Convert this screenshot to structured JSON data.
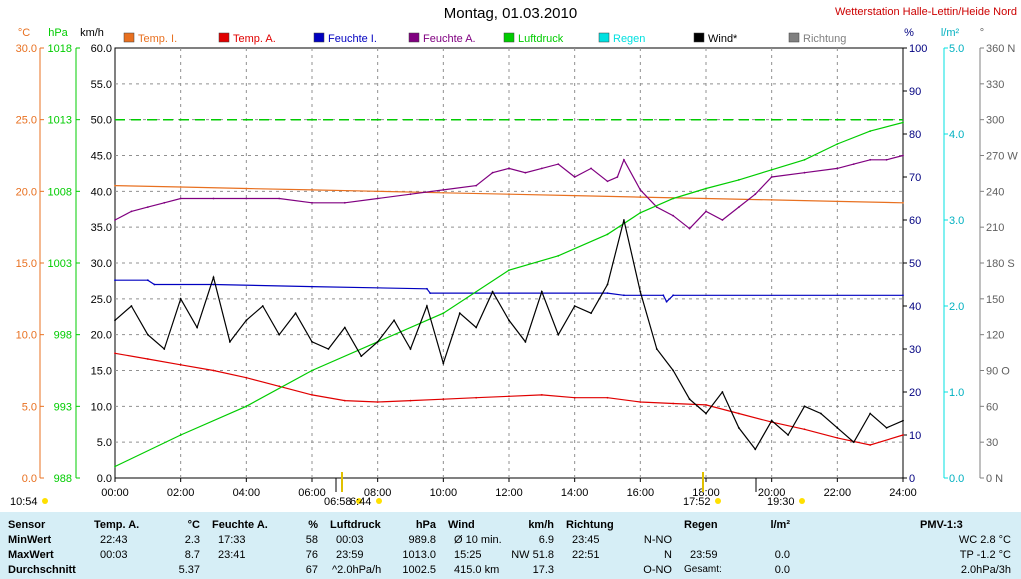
{
  "title": "Montag, 01.03.2010",
  "station": "Wetterstation Halle-Lettin/Heide Nord",
  "colors": {
    "temp_i": "#e87020",
    "temp_a": "#e00000",
    "feuchte_i": "#0000c0",
    "feuchte_a": "#800080",
    "luftdruck": "#00cc00",
    "regen": "#00e0e0",
    "wind": "#000000",
    "richtung": "#808080",
    "table_bg": "#d6eef6"
  },
  "legend": [
    {
      "key": "temp_i",
      "label": "Temp. I."
    },
    {
      "key": "temp_a",
      "label": "Temp. A."
    },
    {
      "key": "feuchte_i",
      "label": "Feuchte I."
    },
    {
      "key": "feuchte_a",
      "label": "Feuchte A."
    },
    {
      "key": "luftdruck",
      "label": "Luftdruck"
    },
    {
      "key": "regen",
      "label": "Regen"
    },
    {
      "key": "wind",
      "label": "Wind*"
    },
    {
      "key": "richtung",
      "label": "Richtung"
    }
  ],
  "chart_data": {
    "type": "line",
    "title": "Montag, 01.03.2010",
    "x_unit": "hours",
    "xlim": [
      0,
      24
    ],
    "x_tick_labels": [
      "00:00",
      "02:00",
      "04:00",
      "06:00",
      "08:00",
      "10:00",
      "12:00",
      "14:00",
      "16:00",
      "18:00",
      "20:00",
      "22:00",
      "24:00"
    ],
    "axes": {
      "temp": {
        "unit": "°C",
        "range": [
          0,
          30
        ],
        "ticks": [
          "0.0",
          "5.0",
          "10.0",
          "15.0",
          "20.0",
          "25.0",
          "30.0"
        ]
      },
      "pressure": {
        "unit": "hPa",
        "range": [
          988,
          1018
        ],
        "ticks": [
          "988",
          "993",
          "998",
          "1003",
          "1008",
          "1013",
          "1018"
        ]
      },
      "wind": {
        "unit": "km/h",
        "range": [
          0,
          60
        ],
        "ticks": [
          "0.0",
          "5.0",
          "10.0",
          "15.0",
          "20.0",
          "25.0",
          "30.0",
          "35.0",
          "40.0",
          "45.0",
          "50.0",
          "55.0",
          "60.0"
        ]
      },
      "humidity": {
        "unit": "%",
        "range": [
          0,
          100
        ],
        "ticks": [
          "0",
          "10",
          "20",
          "30",
          "40",
          "50",
          "60",
          "70",
          "80",
          "90",
          "100"
        ]
      },
      "rain": {
        "unit": "l/m²",
        "range": [
          0,
          5
        ],
        "ticks": [
          "0.0",
          "1.0",
          "2.0",
          "3.0",
          "4.0",
          "5.0"
        ]
      },
      "direction": {
        "unit": "°",
        "range": [
          0,
          360
        ],
        "ticks": [
          "0  N",
          "30",
          "60",
          "90  O",
          "120",
          "150",
          "180 S",
          "210",
          "240",
          "270 W",
          "300",
          "330",
          "360 N"
        ]
      }
    },
    "grid": true,
    "series": [
      {
        "name": "Temp. I.",
        "axis": "temp",
        "x": [
          0,
          2,
          4,
          6,
          8,
          10,
          12,
          14,
          16,
          18,
          20,
          22,
          24
        ],
        "values": [
          20.4,
          20.3,
          20.2,
          20.1,
          20.0,
          19.9,
          19.8,
          19.7,
          19.6,
          19.5,
          19.4,
          19.3,
          19.2
        ]
      },
      {
        "name": "Temp. A.",
        "axis": "temp",
        "x": [
          0,
          1,
          2,
          3,
          4,
          5,
          6,
          7,
          8,
          9,
          10,
          11,
          12,
          13,
          14,
          15,
          16,
          17,
          18,
          19,
          20,
          21,
          22,
          23,
          24
        ],
        "values": [
          8.7,
          8.3,
          7.9,
          7.5,
          7.0,
          6.4,
          5.8,
          5.4,
          5.3,
          5.4,
          5.5,
          5.6,
          5.7,
          5.8,
          5.6,
          5.6,
          5.3,
          5.2,
          5.1,
          4.5,
          3.9,
          3.4,
          2.8,
          2.3,
          3.0
        ]
      },
      {
        "name": "Feuchte I.",
        "axis": "humidity",
        "x": [
          0,
          1,
          1.2,
          3,
          6,
          9.5,
          9.6,
          12,
          15,
          15.5,
          16.7,
          16.8,
          17,
          24
        ],
        "values": [
          46,
          46,
          45,
          45,
          44.5,
          44,
          43,
          43,
          43,
          42.5,
          42.5,
          41,
          42.5,
          42.5
        ]
      },
      {
        "name": "Feuchte A.",
        "axis": "humidity",
        "x": [
          0,
          0.5,
          1,
          1.5,
          2,
          3,
          4,
          5,
          6,
          7,
          8,
          9,
          10,
          11,
          11.5,
          12,
          12.5,
          13,
          13.5,
          14,
          14.5,
          15,
          15.3,
          15.5,
          16,
          16.5,
          17,
          17.5,
          18,
          18.5,
          19,
          19.5,
          20,
          21,
          22,
          22.5,
          23,
          23.5,
          24
        ],
        "values": [
          60,
          62,
          63,
          64,
          65,
          65,
          65,
          65,
          64,
          64,
          65,
          66,
          67,
          68,
          71,
          72,
          71,
          72,
          73,
          70,
          72,
          69,
          70,
          74,
          67,
          63,
          61,
          58,
          62,
          60,
          63,
          66,
          70,
          71,
          72,
          73,
          74,
          74,
          75
        ]
      },
      {
        "name": "Luftdruck",
        "axis": "pressure",
        "x": [
          0,
          2,
          4,
          6,
          8,
          10,
          12,
          13.5,
          15,
          16,
          17,
          18,
          19,
          20,
          21,
          22,
          23,
          24
        ],
        "values": [
          988.8,
          991.0,
          993.0,
          995.5,
          997.5,
          999.5,
          1002.5,
          1003.5,
          1005.0,
          1006.5,
          1007.5,
          1008.2,
          1008.8,
          1009.5,
          1010.2,
          1011.3,
          1012.2,
          1012.8
        ]
      },
      {
        "name": "Wind*",
        "axis": "wind",
        "x": [
          0,
          0.5,
          1,
          1.5,
          2,
          2.5,
          3,
          3.5,
          4,
          4.5,
          5,
          5.5,
          6,
          6.5,
          7,
          7.5,
          8,
          8.5,
          9,
          9.5,
          10,
          10.5,
          11,
          11.5,
          12,
          12.5,
          13,
          13.5,
          14,
          14.5,
          15,
          15.5,
          16,
          16.5,
          17,
          17.5,
          18,
          18.5,
          19,
          19.5,
          20,
          20.5,
          21,
          21.5,
          22,
          22.5,
          23,
          23.5,
          24
        ],
        "values": [
          22,
          24,
          20,
          18,
          25,
          21,
          28,
          19,
          22,
          24,
          20,
          23,
          19,
          18,
          21,
          17,
          19,
          22,
          18,
          24,
          16,
          23,
          21,
          26,
          22,
          19,
          26,
          20,
          24,
          23,
          27,
          36,
          26,
          18,
          15,
          11,
          9,
          12,
          7,
          4,
          8,
          6,
          10,
          9,
          7,
          5,
          9,
          7,
          8
        ]
      },
      {
        "name": "Luftdruck-Linie",
        "axis": "pressure",
        "x": [
          0,
          24
        ],
        "values": [
          1013,
          1013
        ]
      }
    ]
  },
  "x_markers": [
    {
      "time": "10:54",
      "label": "10:54"
    },
    {
      "time": "06:58",
      "label": "06:58"
    },
    {
      "time": "6:44",
      "label": "6:44"
    },
    {
      "time": "17:52",
      "label": "17:52"
    },
    {
      "time": "19:30",
      "label": "19:30"
    }
  ],
  "table": {
    "sensor": {
      "header": "Sensor",
      "rows": [
        "MinWert",
        "MaxWert",
        "Durchschnitt"
      ]
    },
    "temp_a": {
      "header": "Temp. A.",
      "unit": "°C",
      "rows": [
        [
          "22:43",
          "2.3"
        ],
        [
          "00:03",
          "8.7"
        ],
        [
          "",
          "5.37"
        ]
      ]
    },
    "feuchte_a": {
      "header": "Feuchte A.",
      "unit": "%",
      "rows": [
        [
          "17:33",
          "58"
        ],
        [
          "23:41",
          "76"
        ],
        [
          "",
          "67"
        ]
      ]
    },
    "luftdruck": {
      "header": "Luftdruck",
      "unit": "hPa",
      "rows": [
        [
          "00:03",
          "989.8"
        ],
        [
          "23:59",
          "1013.0"
        ],
        [
          "^2.0hPa/h",
          "1002.5"
        ]
      ]
    },
    "wind": {
      "header": "Wind",
      "unit": "km/h",
      "rows": [
        [
          "Ø 10 min.",
          "6.9"
        ],
        [
          "15:25",
          "NW 51.8"
        ],
        [
          "415.0 km",
          "17.3"
        ]
      ]
    },
    "richtung": {
      "header": "Richtung",
      "rows": [
        [
          "23:45",
          "N-NO"
        ],
        [
          "22:51",
          "N"
        ],
        [
          "",
          "O-NO"
        ]
      ]
    },
    "regen": {
      "header": "Regen",
      "unit": "l/m²",
      "rows": [
        [
          "",
          ""
        ],
        [
          "23:59",
          "0.0"
        ],
        [
          "Gesamt:",
          "0.0"
        ]
      ]
    },
    "pmv": {
      "header": "PMV-1:3",
      "rows": [
        "",
        "WC 2.8 °C",
        "TP -1.2 °C",
        "2.0hPa/3h"
      ]
    }
  }
}
